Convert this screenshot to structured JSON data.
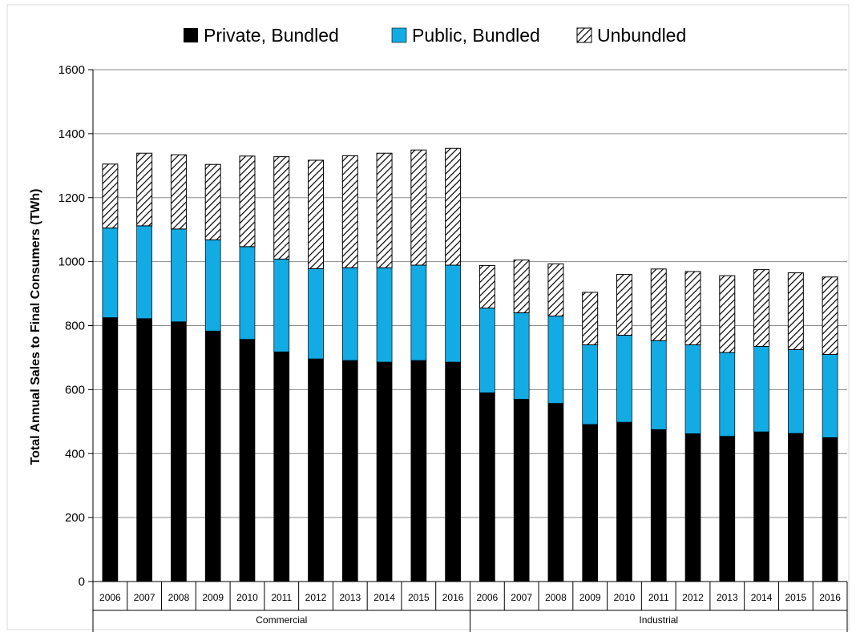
{
  "colors": {
    "private_bundled": "#000000",
    "public_bundled": "#13abe4",
    "unbundled_stroke": "#000000",
    "gridline": "#8c8c8c"
  },
  "chart_data": {
    "type": "bar",
    "stacked": true,
    "title": "",
    "xlabel": "",
    "ylabel": "Total Annual Sales to Final Consumers (TWh)",
    "ylim": [
      0,
      1600
    ],
    "yticks": [
      0,
      200,
      400,
      600,
      800,
      1000,
      1200,
      1400,
      1600
    ],
    "grid": "horizontal",
    "legend_position": "top",
    "groups": [
      {
        "name": "Commercial",
        "categories": [
          "2006",
          "2007",
          "2008",
          "2009",
          "2010",
          "2011",
          "2012",
          "2013",
          "2014",
          "2015",
          "2016"
        ]
      },
      {
        "name": "Industrial",
        "categories": [
          "2006",
          "2007",
          "2008",
          "2009",
          "2010",
          "2011",
          "2012",
          "2013",
          "2014",
          "2015",
          "2016"
        ]
      }
    ],
    "series": [
      {
        "name": "Private, Bundled",
        "values": [
          825,
          822,
          812,
          783,
          757,
          718,
          696,
          691,
          686,
          691,
          686,
          590,
          570,
          557,
          491,
          498,
          475,
          462,
          454,
          468,
          463,
          450
        ]
      },
      {
        "name": "Public, Bundled",
        "values": [
          280,
          290,
          290,
          285,
          290,
          290,
          282,
          290,
          295,
          298,
          303,
          265,
          270,
          273,
          249,
          272,
          278,
          278,
          262,
          267,
          262,
          260
        ]
      },
      {
        "name": "Unbundled",
        "values": [
          200,
          227,
          232,
          236,
          283,
          320,
          339,
          350,
          358,
          360,
          365,
          133,
          165,
          163,
          164,
          190,
          224,
          229,
          240,
          240,
          240,
          242
        ]
      }
    ]
  }
}
